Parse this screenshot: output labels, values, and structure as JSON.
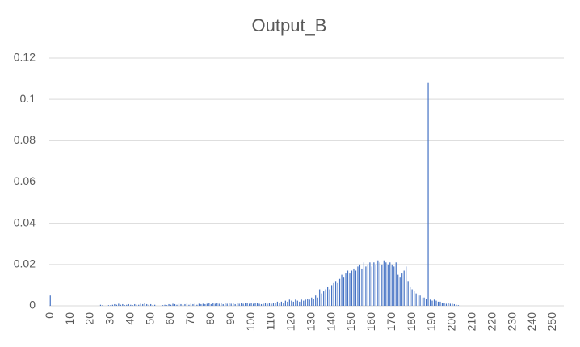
{
  "chart_data": {
    "type": "bar",
    "title": "Output_B",
    "categories": [
      "0",
      null,
      null,
      null,
      null,
      null,
      null,
      null,
      null,
      null,
      "10",
      null,
      null,
      null,
      null,
      null,
      null,
      null,
      null,
      null,
      "20",
      null,
      null,
      null,
      null,
      null,
      null,
      null,
      null,
      null,
      "30",
      null,
      null,
      null,
      null,
      null,
      null,
      null,
      null,
      null,
      "40",
      null,
      null,
      null,
      null,
      null,
      null,
      null,
      null,
      null,
      "50",
      null,
      null,
      null,
      null,
      null,
      null,
      null,
      null,
      null,
      "60",
      null,
      null,
      null,
      null,
      null,
      null,
      null,
      null,
      null,
      "70",
      null,
      null,
      null,
      null,
      null,
      null,
      null,
      null,
      null,
      "80",
      null,
      null,
      null,
      null,
      null,
      null,
      null,
      null,
      null,
      "90",
      null,
      null,
      null,
      null,
      null,
      null,
      null,
      null,
      null,
      "100",
      null,
      null,
      null,
      null,
      null,
      null,
      null,
      null,
      null,
      "110",
      null,
      null,
      null,
      null,
      null,
      null,
      null,
      null,
      null,
      "120",
      null,
      null,
      null,
      null,
      null,
      null,
      null,
      null,
      null,
      "130",
      null,
      null,
      null,
      null,
      null,
      null,
      null,
      null,
      null,
      "140",
      null,
      null,
      null,
      null,
      null,
      null,
      null,
      null,
      null,
      "150",
      null,
      null,
      null,
      null,
      null,
      null,
      null,
      null,
      null,
      "160",
      null,
      null,
      null,
      null,
      null,
      null,
      null,
      null,
      null,
      "170",
      null,
      null,
      null,
      null,
      null,
      null,
      null,
      null,
      null,
      "180",
      null,
      null,
      null,
      null,
      null,
      null,
      null,
      null,
      null,
      "190",
      null,
      null,
      null,
      null,
      null,
      null,
      null,
      null,
      null,
      "200",
      null,
      null,
      null,
      null,
      null,
      null,
      null,
      null,
      null,
      "210",
      null,
      null,
      null,
      null,
      null,
      null,
      null,
      null,
      null,
      "220",
      null,
      null,
      null,
      null,
      null,
      null,
      null,
      null,
      null,
      "230",
      null,
      null,
      null,
      null,
      null,
      null,
      null,
      null,
      null,
      "240",
      null,
      null,
      null,
      null,
      null,
      null,
      null,
      null,
      null,
      "250",
      null,
      null,
      null,
      null,
      null
    ],
    "values": [
      0.005,
      0,
      0,
      0,
      0,
      0,
      0,
      0,
      0,
      0,
      0,
      0,
      0,
      0,
      0,
      0,
      0,
      0,
      0,
      0,
      0,
      0,
      0,
      0,
      0,
      0.0005,
      0.0003,
      0,
      0,
      0.0003,
      0.0003,
      0.0005,
      0.0008,
      0.0005,
      0.001,
      0.0005,
      0.0008,
      0.0003,
      0.0005,
      0.0008,
      0.0005,
      0.0003,
      0.0008,
      0.0005,
      0.0005,
      0.001,
      0.0008,
      0.0015,
      0.0008,
      0.0005,
      0.0008,
      0.0003,
      0.0005,
      0,
      0,
      0,
      0.0003,
      0.0005,
      0.0003,
      0.0008,
      0.0005,
      0.001,
      0.0008,
      0.0005,
      0.001,
      0.0008,
      0.0005,
      0.0008,
      0.001,
      0.0005,
      0.001,
      0.0008,
      0.001,
      0.0005,
      0.001,
      0.0008,
      0.001,
      0.0008,
      0.001,
      0.0012,
      0.0008,
      0.0012,
      0.001,
      0.0015,
      0.001,
      0.0012,
      0.0008,
      0.0012,
      0.001,
      0.0015,
      0.001,
      0.0012,
      0.0008,
      0.0015,
      0.001,
      0.0012,
      0.001,
      0.0015,
      0.0012,
      0.001,
      0.0015,
      0.001,
      0.0012,
      0.0015,
      0.001,
      0.0008,
      0.001,
      0.0012,
      0.001,
      0.0015,
      0.001,
      0.0015,
      0.0012,
      0.002,
      0.0015,
      0.002,
      0.0015,
      0.0025,
      0.002,
      0.003,
      0.0025,
      0.002,
      0.003,
      0.0025,
      0.002,
      0.003,
      0.0025,
      0.003,
      0.0035,
      0.003,
      0.004,
      0.0035,
      0.005,
      0.004,
      0.008,
      0.006,
      0.007,
      0.008,
      0.009,
      0.008,
      0.01,
      0.011,
      0.012,
      0.011,
      0.013,
      0.015,
      0.014,
      0.016,
      0.017,
      0.016,
      0.017,
      0.018,
      0.017,
      0.019,
      0.02,
      0.018,
      0.021,
      0.019,
      0.02,
      0.021,
      0.019,
      0.021,
      0.02,
      0.022,
      0.021,
      0.02,
      0.022,
      0.021,
      0.02,
      0.021,
      0.02,
      0.019,
      0.021,
      0.015,
      0.014,
      0.016,
      0.017,
      0.019,
      0.012,
      0.009,
      0.008,
      0.007,
      0.006,
      0.005,
      0.005,
      0.004,
      0.004,
      0.0035,
      0.108,
      0.003,
      0.0025,
      0.003,
      0.0025,
      0.002,
      0.002,
      0.0015,
      0.0015,
      0.001,
      0.0012,
      0.001,
      0.001,
      0.0008,
      0.0005,
      0.0003,
      0,
      0,
      0,
      0,
      0,
      0,
      0,
      0,
      0,
      0,
      0,
      0,
      0,
      0,
      0,
      0,
      0,
      0,
      0,
      0,
      0,
      0,
      0,
      0,
      0,
      0,
      0,
      0,
      0,
      0,
      0,
      0,
      0,
      0,
      0,
      0,
      0,
      0,
      0,
      0,
      0,
      0,
      0,
      0,
      0,
      0,
      0,
      0,
      0,
      0,
      0,
      0
    ],
    "color": "#4472c4",
    "ylim": [
      0,
      0.12
    ],
    "yticks": [
      0,
      0.02,
      0.04,
      0.06,
      0.08,
      0.1,
      0.12
    ],
    "grid": true
  }
}
